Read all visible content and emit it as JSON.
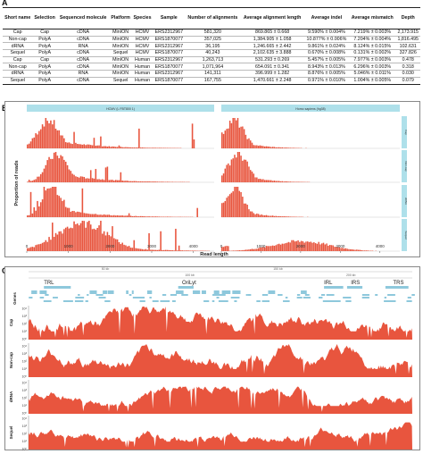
{
  "panel_a": {
    "label": "A",
    "headers": [
      "Short name",
      "Selection",
      "Sequenced molecule",
      "Platform",
      "Species",
      "Sample",
      "Number of alignments",
      "Average alignment length",
      "Average indel",
      "Average mismatch",
      "Depth"
    ],
    "rows": [
      [
        "Cap",
        "Cap",
        "cDNA",
        "MinION",
        "HCMV",
        "ERS2312967",
        "581,320",
        "869.865 ± 0.668",
        "9.590% ± 0.004%",
        "7.219% ± 0.003%",
        "2,173.915"
      ],
      [
        "Non-cap",
        "PolyA",
        "cDNA",
        "MinION",
        "HCMV",
        "ERS1870077",
        "357,025",
        "1,384.905 ± 1.058",
        "10.877% ± 0.006%",
        "7.204% ± 0.004%",
        "1,816.495"
      ],
      [
        "dRNA",
        "PolyA",
        "RNA",
        "MinION",
        "HCMV",
        "ERS2312967",
        "36,195",
        "1,246.665 ± 2.442",
        "9.861% ± 0.024%",
        "8.124% ± 0.015%",
        "102.631"
      ],
      [
        "Sequel",
        "PolyA",
        "cDNA",
        "Sequel",
        "HCMV",
        "ERS1870077",
        "40,243",
        "2,102.635 ± 3.888",
        "0.670% ± 0.008%",
        "0.131% ± 0.002%",
        "327.826"
      ],
      [
        "Cap",
        "Cap",
        "cDNA",
        "MinION",
        "Human",
        "ERS2312967",
        "1,263,713",
        "531.293 ± 0.269",
        "5.457% ± 0.005%",
        "7.977% ± 0.003%",
        "0.478"
      ],
      [
        "Non-cap",
        "PolyA",
        "cDNA",
        "MinION",
        "Human",
        "ERS1870077",
        "1,071,964",
        "654.091 ± 0.341",
        "8.943% ± 0.013%",
        "6.296% ± 0.003%",
        "0.318"
      ],
      [
        "dRNA",
        "PolyA",
        "RNA",
        "MinION",
        "Human",
        "ERS2312967",
        "141,311",
        "396.999 ± 1.282",
        "8.876% ± 0.005%",
        "5.046% ± 0.011%",
        "0.030"
      ],
      [
        "Sequel",
        "PolyA",
        "cDNA",
        "Sequel",
        "Human",
        "ERS1870077",
        "167,755",
        "1,470.661 ± 2.248",
        "0.971% ± 0.010%",
        "1.004% ± 0.005%",
        "0.079"
      ]
    ]
  },
  "panel_b": {
    "label": "B",
    "hcmv_strip": "HCMV (L FBT800 1)",
    "human_strip": "Homo sapiens (hg38)",
    "row_labels": [
      "Cap",
      "Non-cap",
      "dRNA",
      "Sequel"
    ],
    "xlabel": "Read length",
    "ylabel": "Proportion of reads",
    "xticks": [
      "0",
      "1000",
      "2000",
      "3000",
      "4000"
    ],
    "color": "#e8553e"
  },
  "panel_c": {
    "label": "C",
    "scale_labels": [
      "50 kb",
      "150 kb"
    ],
    "scale_labels2": [
      "100 kb",
      "200 kb"
    ],
    "region_labels": [
      "TRL",
      "OriLyt",
      "IRL",
      "IRS",
      "TRS"
    ],
    "genes_label": "Genes",
    "track_labels": [
      "Cap",
      "Non-cap",
      "dRNA",
      "Sequel"
    ],
    "yticks": [
      "10⁴",
      "10³",
      "10²",
      "10¹",
      "10⁰"
    ],
    "color": "#e8553e",
    "gene_color": "#8ec8dc"
  },
  "chart_data": [
    {
      "type": "bar",
      "title": "",
      "facets": [
        "HCMV (L FBT800 1)",
        "Homo sapiens (hg38)"
      ],
      "xlabel": "Read length",
      "ylabel": "Proportion of reads",
      "xlim": [
        0,
        4500
      ],
      "series": [
        {
          "name": "Cap",
          "facet": "HCMV (L FBT800 1)",
          "peak_x": 500
        },
        {
          "name": "Non-cap",
          "facet": "HCMV (L FBT800 1)",
          "peak_x": 700
        },
        {
          "name": "dRNA",
          "facet": "HCMV (L FBT800 1)",
          "peak_x": 600
        },
        {
          "name": "Sequel",
          "facet": "HCMV (L FBT800 1)",
          "peak_x": 1300
        },
        {
          "name": "Cap",
          "facet": "Homo sapiens (hg38)",
          "peak_x": 300
        },
        {
          "name": "Non-cap",
          "facet": "Homo sapiens (hg38)",
          "peak_x": 400
        },
        {
          "name": "dRNA",
          "facet": "Homo sapiens (hg38)",
          "peak_x": 300
        },
        {
          "name": "Sequel",
          "facet": "Homo sapiens (hg38)",
          "peak_x": 2000
        }
      ]
    },
    {
      "type": "area",
      "title": "",
      "xlabel": "",
      "ylabel": "",
      "y_scale": "log",
      "ylim": [
        1,
        10000
      ],
      "series": [
        {
          "name": "Cap"
        },
        {
          "name": "Non-cap"
        },
        {
          "name": "dRNA"
        },
        {
          "name": "Sequel"
        }
      ]
    }
  ]
}
